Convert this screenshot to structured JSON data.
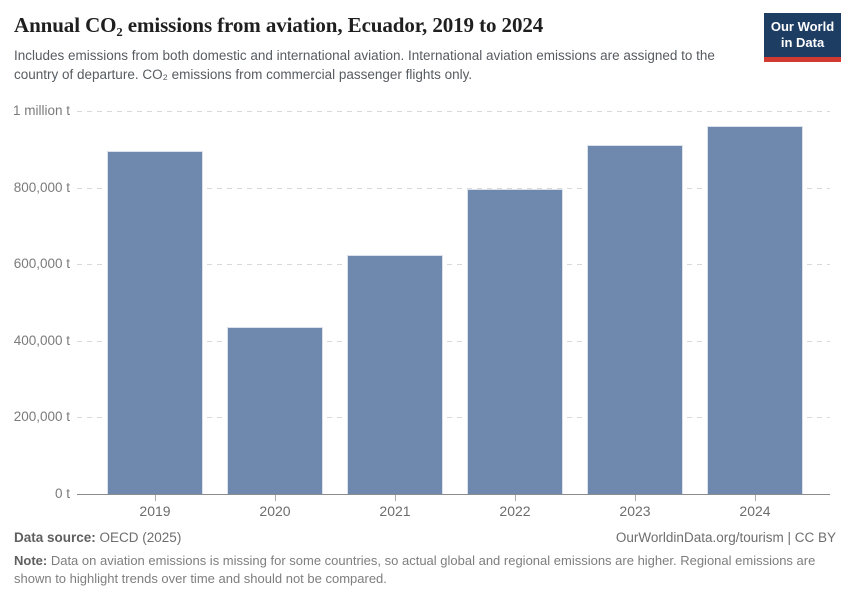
{
  "header": {
    "title": "Annual CO₂ emissions from aviation, Ecuador, 2019 to 2024",
    "subtitle": "Includes emissions from both domestic and international aviation. International aviation emissions are assigned to the country of departure. CO₂ emissions from commercial passenger flights only.",
    "logo": {
      "line1": "Our World",
      "line2": "in Data"
    }
  },
  "chart_data": {
    "type": "bar",
    "title": "Annual CO₂ emissions from aviation, Ecuador, 2019 to 2024",
    "categories": [
      "2019",
      "2020",
      "2021",
      "2022",
      "2023",
      "2024"
    ],
    "values": [
      895000,
      436000,
      624000,
      797000,
      910000,
      962000
    ],
    "unit": "t",
    "xlabel": "",
    "ylabel": "",
    "ylim": [
      0,
      1000000
    ],
    "yticks": [
      {
        "value": 0,
        "label": "0 t"
      },
      {
        "value": 200000,
        "label": "200,000 t"
      },
      {
        "value": 400000,
        "label": "400,000 t"
      },
      {
        "value": 600000,
        "label": "600,000 t"
      },
      {
        "value": 800000,
        "label": "800,000 t"
      },
      {
        "value": 1000000,
        "label": "1 million t"
      }
    ],
    "grid": "horizontal-dashed",
    "legend": "none",
    "bar_color": "#6f88ad"
  },
  "footer": {
    "source_label": "Data source:",
    "source_value": " OECD (2025)",
    "link": "OurWorldinData.org/tourism | CC BY",
    "note_label": "Note:",
    "note_text": " Data on aviation emissions is missing for some countries, so actual global and regional emissions are higher. Regional emissions are shown to highlight trends over time and should not be compared."
  },
  "colors": {
    "bar": "#6f88ad",
    "logo_bg": "#1d3d63",
    "logo_stripe": "#d03a31"
  }
}
